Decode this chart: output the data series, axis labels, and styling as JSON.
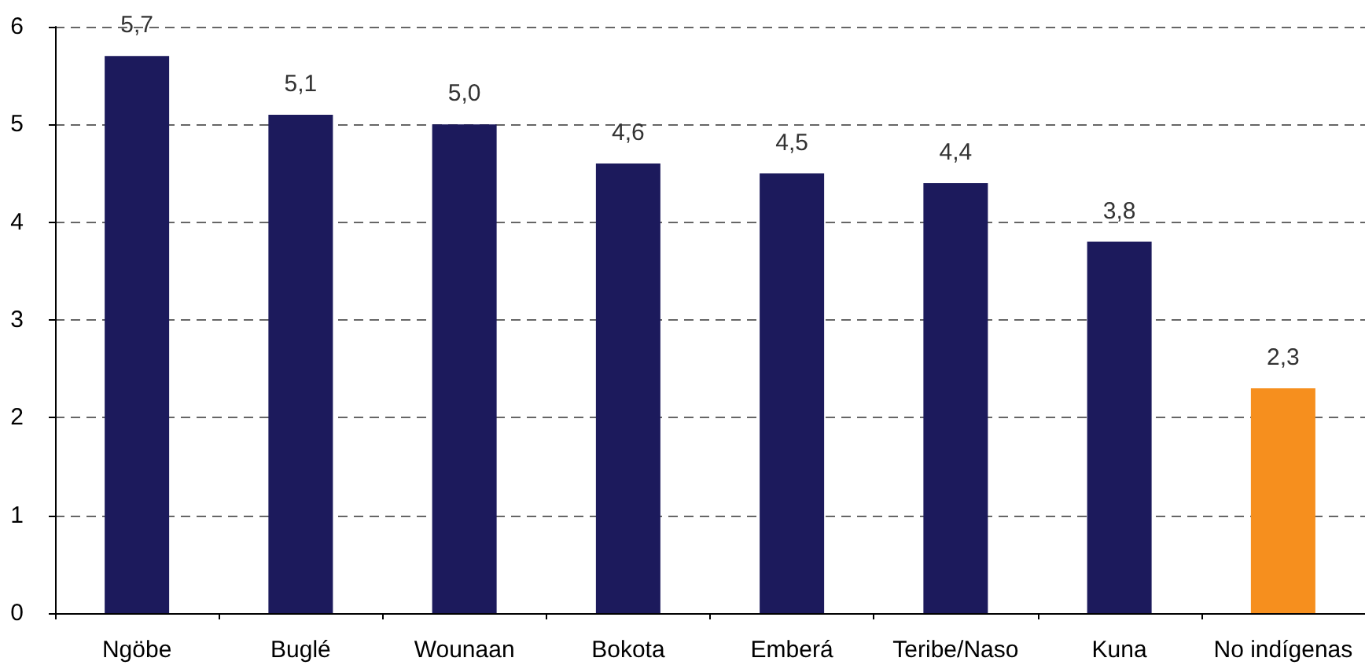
{
  "chart_data": {
    "type": "bar",
    "categories": [
      "Ngöbe",
      "Buglé",
      "Wounaan",
      "Bokota",
      "Emberá",
      "Teribe/Naso",
      "Kuna",
      "No indígenas"
    ],
    "values": [
      5.7,
      5.1,
      5.0,
      4.6,
      4.5,
      4.4,
      3.8,
      2.3
    ],
    "colors": [
      "#1c1a5c",
      "#1c1a5c",
      "#1c1a5c",
      "#1c1a5c",
      "#1c1a5c",
      "#1c1a5c",
      "#1c1a5c",
      "#f68f1e"
    ],
    "value_labels": [
      "5,7",
      "5,1",
      "5,0",
      "4,6",
      "4,5",
      "4,4",
      "3,8",
      "2,3"
    ],
    "ylim": [
      0,
      6
    ],
    "yticks": [
      0,
      1,
      2,
      3,
      4,
      5,
      6
    ],
    "grid": "y"
  }
}
